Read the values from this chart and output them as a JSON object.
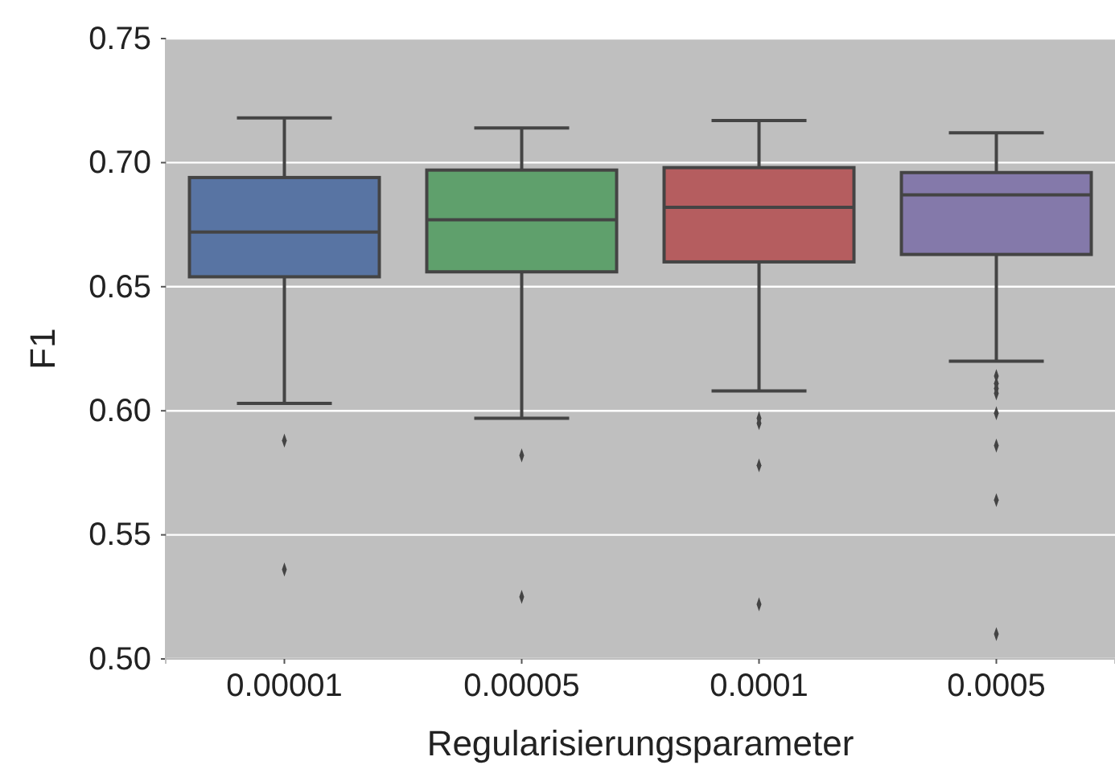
{
  "chart_data": {
    "type": "box",
    "xlabel": "Regularisierungsparameter",
    "ylabel": "F1",
    "categories": [
      "0.00001",
      "0.00005",
      "0.0001",
      "0.0005"
    ],
    "colors": [
      "#5874a3",
      "#5fa06c",
      "#b55d5f",
      "#8479aa"
    ],
    "boxes": [
      {
        "low": 0.603,
        "q1": 0.654,
        "median": 0.672,
        "q3": 0.694,
        "high": 0.718,
        "outliers": [
          0.588,
          0.536
        ]
      },
      {
        "low": 0.597,
        "q1": 0.656,
        "median": 0.677,
        "q3": 0.697,
        "high": 0.714,
        "outliers": [
          0.582,
          0.525
        ]
      },
      {
        "low": 0.608,
        "q1": 0.66,
        "median": 0.682,
        "q3": 0.698,
        "high": 0.717,
        "outliers": [
          0.597,
          0.595,
          0.578,
          0.522
        ]
      },
      {
        "low": 0.62,
        "q1": 0.663,
        "median": 0.687,
        "q3": 0.696,
        "high": 0.712,
        "outliers": [
          0.614,
          0.611,
          0.609,
          0.607,
          0.599,
          0.586,
          0.564,
          0.51
        ]
      }
    ],
    "ylim": [
      0.5,
      0.75
    ],
    "yticks": [
      {
        "value": 0.5,
        "label": "0.50"
      },
      {
        "value": 0.55,
        "label": "0.55"
      },
      {
        "value": 0.6,
        "label": "0.60"
      },
      {
        "value": 0.65,
        "label": "0.65"
      },
      {
        "value": 0.7,
        "label": "0.70"
      },
      {
        "value": 0.75,
        "label": "0.75"
      }
    ],
    "grid": "y"
  }
}
